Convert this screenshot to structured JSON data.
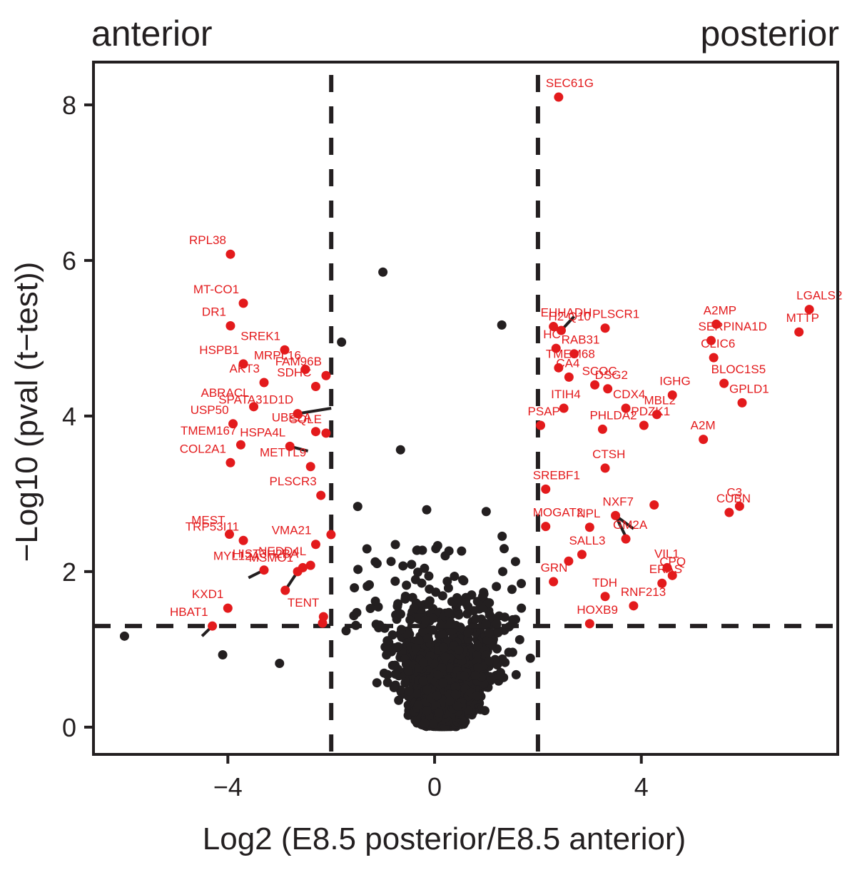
{
  "chart_data": {
    "type": "scatter",
    "title": "",
    "left_label": "anterior",
    "right_label": "posterior",
    "xlabel": "Log2 (E8.5 posterior/E8.5 anterior)",
    "ylabel": "−Log10 (pval (t−test))",
    "xlim": [
      -6.6,
      7.8
    ],
    "ylim": [
      -0.35,
      8.55
    ],
    "xticks": [
      {
        "value": -4,
        "label": "−4"
      },
      {
        "value": 0,
        "label": "0"
      },
      {
        "value": 4,
        "label": "4"
      }
    ],
    "yticks": [
      {
        "value": 0,
        "label": "0"
      },
      {
        "value": 2,
        "label": "2"
      },
      {
        "value": 4,
        "label": "4"
      },
      {
        "value": 6,
        "label": "6"
      },
      {
        "value": 8,
        "label": "8"
      }
    ],
    "thresholds": {
      "fold_change": [
        -2,
        2
      ],
      "pvalue": 1.3
    },
    "colors": {
      "significant": "#e31a1c",
      "other": "#231f20",
      "axis": "#231f20"
    },
    "labeled_points": [
      {
        "gene": "SEC61G",
        "x": 2.4,
        "y": 8.1
      },
      {
        "gene": "RPL38",
        "x": -3.95,
        "y": 6.08
      },
      {
        "gene": "MT-CO1",
        "x": -3.7,
        "y": 5.45
      },
      {
        "gene": "DR1",
        "x": -3.95,
        "y": 5.16
      },
      {
        "gene": "HSPB1",
        "x": -3.7,
        "y": 4.67
      },
      {
        "gene": "SREK1",
        "x": -2.9,
        "y": 4.85
      },
      {
        "gene": "MRPL16",
        "x": -2.5,
        "y": 4.6
      },
      {
        "gene": "FAM96B",
        "x": -2.1,
        "y": 4.52
      },
      {
        "gene": "SDHC",
        "x": -2.3,
        "y": 4.38
      },
      {
        "gene": "AKT3",
        "x": -3.3,
        "y": 4.43
      },
      {
        "gene": "ABRACL",
        "x": -3.5,
        "y": 4.12
      },
      {
        "gene": "SPATA31D1D",
        "x": -2.65,
        "y": 4.03
      },
      {
        "gene": "USP50",
        "x": -3.9,
        "y": 3.9
      },
      {
        "gene": "UBE2A",
        "x": -2.3,
        "y": 3.8
      },
      {
        "gene": "SQLE",
        "x": -2.1,
        "y": 3.78
      },
      {
        "gene": "TMEM167",
        "x": -3.75,
        "y": 3.63
      },
      {
        "gene": "HSPA4L",
        "x": -2.8,
        "y": 3.61
      },
      {
        "gene": "COL2A1",
        "x": -3.95,
        "y": 3.4
      },
      {
        "gene": "METTL9",
        "x": -2.4,
        "y": 3.35
      },
      {
        "gene": "PLSCR3",
        "x": -2.2,
        "y": 2.98
      },
      {
        "gene": "MEST",
        "x": -3.97,
        "y": 2.48
      },
      {
        "gene": "TRP53I11",
        "x": -3.7,
        "y": 2.4
      },
      {
        "gene": "VMA21",
        "x": -2.3,
        "y": 2.35
      },
      {
        "gene": "HIST3H2BA",
        "x": -2.55,
        "y": 2.05
      },
      {
        "gene": "NEDD4L",
        "x": -2.4,
        "y": 2.08
      },
      {
        "gene": "MYL12A",
        "x": -3.3,
        "y": 2.02
      },
      {
        "gene": "MSMO1",
        "x": -2.65,
        "y": 2.0
      },
      {
        "gene": "KXD1",
        "x": -4.0,
        "y": 1.53
      },
      {
        "gene": "TENT",
        "x": -2.15,
        "y": 1.42
      },
      {
        "gene": "HBAT1",
        "x": -4.3,
        "y": 1.3
      },
      {
        "gene": "EHHADH",
        "x": 2.3,
        "y": 5.15
      },
      {
        "gene": "H2-Q10",
        "x": 2.45,
        "y": 5.1
      },
      {
        "gene": "HC",
        "x": 2.35,
        "y": 4.87
      },
      {
        "gene": "RAB31",
        "x": 2.7,
        "y": 4.8
      },
      {
        "gene": "PLSCR1",
        "x": 3.3,
        "y": 5.13
      },
      {
        "gene": "SERPINA1D",
        "x": 5.35,
        "y": 4.97
      },
      {
        "gene": "A2MP",
        "x": 5.45,
        "y": 5.18
      },
      {
        "gene": "LGALS2",
        "x": 7.25,
        "y": 5.37
      },
      {
        "gene": "MTTP",
        "x": 7.05,
        "y": 5.08
      },
      {
        "gene": "CLIC6",
        "x": 5.4,
        "y": 4.75
      },
      {
        "gene": "TMEM68",
        "x": 2.4,
        "y": 4.62
      },
      {
        "gene": "CA4",
        "x": 2.6,
        "y": 4.5
      },
      {
        "gene": "SCOC",
        "x": 3.1,
        "y": 4.4
      },
      {
        "gene": "DSG2",
        "x": 3.35,
        "y": 4.35
      },
      {
        "gene": "IGHG",
        "x": 4.6,
        "y": 4.27
      },
      {
        "gene": "BLOC1S5",
        "x": 5.6,
        "y": 4.42
      },
      {
        "gene": "GPLD1",
        "x": 5.95,
        "y": 4.17
      },
      {
        "gene": "ITIH4",
        "x": 2.5,
        "y": 4.1
      },
      {
        "gene": "CDX4",
        "x": 3.7,
        "y": 4.1
      },
      {
        "gene": "MBL2",
        "x": 4.3,
        "y": 4.02
      },
      {
        "gene": "PSAP",
        "x": 2.05,
        "y": 3.88
      },
      {
        "gene": "PHLDA2",
        "x": 3.25,
        "y": 3.83
      },
      {
        "gene": "PDZK1",
        "x": 4.05,
        "y": 3.88
      },
      {
        "gene": "A2M",
        "x": 5.2,
        "y": 3.7
      },
      {
        "gene": "CTSH",
        "x": 3.3,
        "y": 3.33
      },
      {
        "gene": "SREBF1",
        "x": 2.15,
        "y": 3.06
      },
      {
        "gene": "NXF7",
        "x": 3.5,
        "y": 2.72
      },
      {
        "gene": "C3",
        "x": 5.9,
        "y": 2.84
      },
      {
        "gene": "CUBN",
        "x": 5.7,
        "y": 2.76
      },
      {
        "gene": "MOGAT2",
        "x": 2.15,
        "y": 2.58
      },
      {
        "gene": "NPL",
        "x": 3.0,
        "y": 2.57
      },
      {
        "gene": "GM2A",
        "x": 3.7,
        "y": 2.42
      },
      {
        "gene": "SALL3",
        "x": 2.85,
        "y": 2.22
      },
      {
        "gene": "VIL1",
        "x": 4.5,
        "y": 2.05
      },
      {
        "gene": "GRN",
        "x": 2.3,
        "y": 1.87
      },
      {
        "gene": "TDH",
        "x": 3.3,
        "y": 1.68
      },
      {
        "gene": "ERAS",
        "x": 4.4,
        "y": 1.85
      },
      {
        "gene": "CPQ",
        "x": 4.6,
        "y": 1.95
      },
      {
        "gene": "RNF213",
        "x": 3.85,
        "y": 1.56
      },
      {
        "gene": "HOXB9",
        "x": 3.0,
        "y": 1.33
      }
    ]
  }
}
